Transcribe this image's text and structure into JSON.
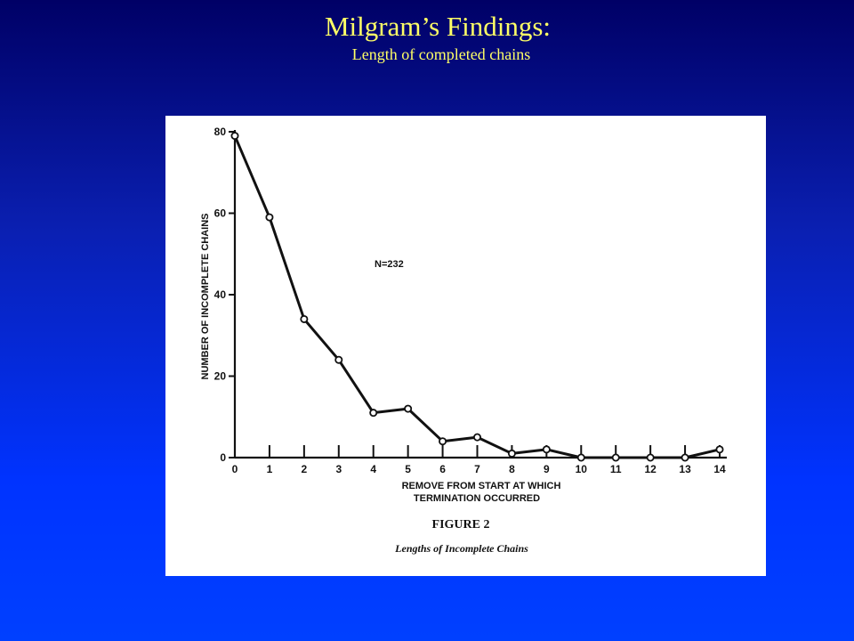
{
  "slide": {
    "title": "Milgram’s Findings:",
    "subtitle": "Length of completed chains"
  },
  "chart_data": {
    "type": "line",
    "xlabel": [
      "REMOVE FROM START AT WHICH",
      "TERMINATION OCCURRED"
    ],
    "ylabel": "NUMBER OF INCOMPLETE CHAINS",
    "x": [
      0,
      1,
      2,
      3,
      4,
      5,
      6,
      7,
      8,
      9,
      10,
      11,
      12,
      13,
      14
    ],
    "x_tick_labels": [
      "0",
      "1",
      "2",
      "3",
      "4",
      "5",
      "6",
      "7",
      "8",
      "9",
      "10",
      "11",
      "12",
      "13",
      "14"
    ],
    "y_ticks": [
      0,
      20,
      40,
      60,
      80
    ],
    "y_tick_labels": [
      "0",
      "20",
      "40",
      "60",
      "80"
    ],
    "xlim": [
      0,
      14
    ],
    "ylim": [
      0,
      80
    ],
    "series": [
      {
        "values": [
          79,
          59,
          34,
          24,
          11,
          12,
          4,
          5,
          1,
          2,
          0,
          0,
          0,
          0,
          2
        ]
      }
    ],
    "annotation": "N=232",
    "caption": "FIGURE 2",
    "subcaption": "Lengths of Incomplete Chains",
    "grid": false
  }
}
